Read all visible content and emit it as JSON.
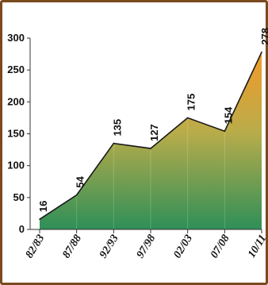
{
  "chart_data": {
    "type": "area",
    "categories": [
      "82/83",
      "87/88",
      "92/93",
      "97/98",
      "02/03",
      "07/08",
      "10/11"
    ],
    "values": [
      16,
      54,
      135,
      127,
      175,
      154,
      278
    ],
    "data_labels": [
      "16",
      "54",
      "135",
      "127",
      "175",
      "154",
      "278"
    ],
    "y_ticks": [
      "0",
      "50",
      "100",
      "150",
      "200",
      "250",
      "300"
    ],
    "ylim": [
      0,
      300
    ],
    "grid": false,
    "colors": {
      "frame": "#7a4a1f",
      "gradient_top": "#f39a2a",
      "gradient_mid": "#b9ac4a",
      "gradient_bottom": "#2e8f58",
      "line": "#1a1a1a"
    }
  }
}
